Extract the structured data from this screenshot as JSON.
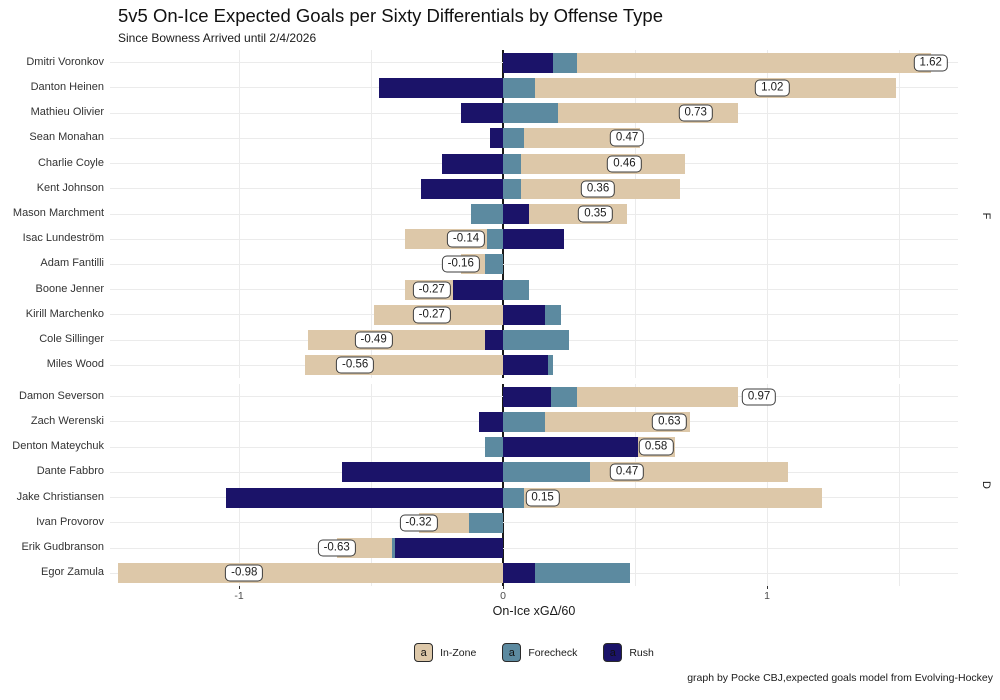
{
  "caption": "graph by Pocke CBJ,expected goals model from Evolving-Hockey",
  "legend": {
    "key_glyph": "a",
    "items": [
      {
        "name": "in-zone",
        "label": "In-Zone",
        "color": "#ddc8a9"
      },
      {
        "name": "forecheck",
        "label": "Forecheck",
        "color": "#5c8aa0"
      },
      {
        "name": "rush",
        "label": "Rush",
        "color": "#1b1369"
      }
    ]
  },
  "colors": {
    "zero_line": "#1a1a1a",
    "grid": "#ebebeb",
    "label_box_border": "#3c3c3c",
    "in_zone": "#ddc8a9",
    "forecheck": "#5c8aa0",
    "rush": "#1b1369"
  },
  "chart_data": {
    "type": "bar",
    "orientation": "horizontal",
    "stacked": true,
    "diverging": true,
    "title": "5v5 On-Ice Expected Goals per Sixty Differentials by Offense Type",
    "subtitle": "Since Bowness Arrived until 2/4/2026",
    "xlabel": "On-Ice xGΔ/60",
    "xlim": [
      -1.49,
      1.72
    ],
    "xticks": [
      -1,
      0,
      1
    ],
    "xtick_labels": [
      "-1",
      "0",
      "1"
    ],
    "grid_interval": 0.5,
    "legend_position": "bottom",
    "stack_order_from_zero": [
      "Rush",
      "Forecheck",
      "In-Zone"
    ],
    "facets": [
      {
        "label": "F",
        "players": [
          "Dmitri Voronkov",
          "Danton Heinen",
          "Mathieu Olivier",
          "Sean Monahan",
          "Charlie Coyle",
          "Kent Johnson",
          "Mason Marchment",
          "Isac Lundeström",
          "Adam Fantilli",
          "Boone Jenner",
          "Kirill Marchenko",
          "Cole Sillinger",
          "Miles Wood"
        ],
        "series": [
          {
            "name": "In-Zone",
            "values": [
              1.34,
              1.37,
              0.68,
              0.44,
              0.62,
              0.6,
              0.37,
              -0.31,
              -0.09,
              -0.18,
              -0.49,
              -0.67,
              -0.75
            ]
          },
          {
            "name": "Forecheck",
            "values": [
              0.09,
              0.12,
              0.21,
              0.08,
              0.07,
              0.07,
              -0.12,
              -0.06,
              -0.07,
              0.1,
              0.06,
              0.25,
              0.02
            ]
          },
          {
            "name": "Rush",
            "values": [
              0.19,
              -0.47,
              -0.16,
              -0.05,
              -0.23,
              -0.31,
              0.1,
              0.23,
              0.0,
              -0.19,
              0.16,
              -0.07,
              0.17
            ]
          }
        ],
        "totals": [
          1.62,
          1.02,
          0.73,
          0.47,
          0.46,
          0.36,
          0.35,
          -0.14,
          -0.16,
          -0.27,
          -0.27,
          -0.49,
          -0.56
        ],
        "total_labels": [
          "1.62",
          "1.02",
          "0.73",
          "0.47",
          "0.46",
          "0.36",
          "0.35",
          "-0.14",
          "-0.16",
          "-0.27",
          "-0.27",
          "-0.49",
          "-0.56"
        ]
      },
      {
        "label": "D",
        "players": [
          "Damon Severson",
          "Zach Werenski",
          "Denton Mateychuk",
          "Dante Fabbro",
          "Jake Christiansen",
          "Ivan Provorov",
          "Erik Gudbranson",
          "Egor Zamula"
        ],
        "series": [
          {
            "name": "In-Zone",
            "values": [
              0.61,
              0.55,
              0.14,
              0.75,
              1.13,
              -0.19,
              -0.21,
              -1.46
            ]
          },
          {
            "name": "Forecheck",
            "values": [
              0.1,
              0.16,
              -0.07,
              0.33,
              0.08,
              -0.13,
              -0.01,
              0.36
            ]
          },
          {
            "name": "Rush",
            "values": [
              0.18,
              -0.09,
              0.51,
              -0.61,
              -1.05,
              0.0,
              -0.41,
              0.12
            ]
          }
        ],
        "totals": [
          0.97,
          0.63,
          0.58,
          0.47,
          0.15,
          -0.32,
          -0.63,
          -0.98
        ],
        "total_labels": [
          "0.97",
          "0.63",
          "0.58",
          "0.47",
          "0.15",
          "-0.32",
          "-0.63",
          "-0.98"
        ]
      }
    ]
  }
}
